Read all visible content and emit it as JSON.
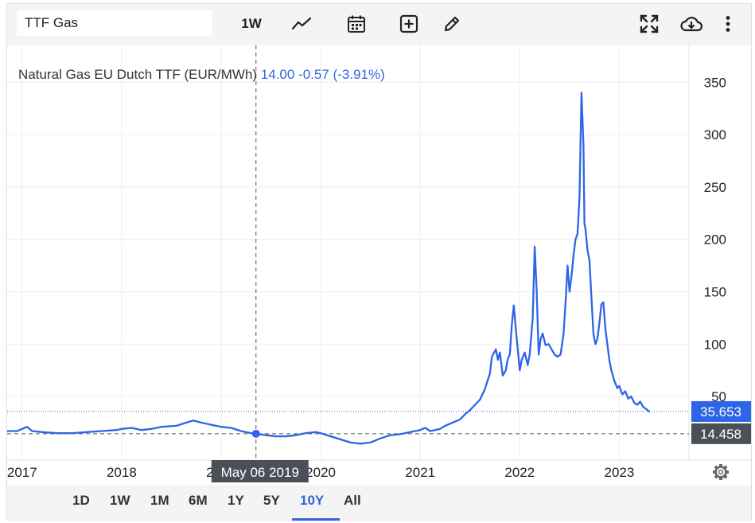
{
  "toolbar": {
    "symbol": "TTF Gas",
    "interval": "1W",
    "icons": [
      "line-chart-icon",
      "calendar-icon",
      "add-indicator-icon",
      "draw-pencil-icon",
      "fullscreen-icon",
      "cloud-download-icon",
      "more-vert-icon"
    ]
  },
  "legend": {
    "name": "Natural Gas EU Dutch TTF (EUR/MWh)",
    "price": "14.00",
    "change": "-0.57 (-3.91%)",
    "price_color": "#3366dd"
  },
  "crosshair": {
    "date_label": "May 06 2019",
    "value_label": "14.458",
    "x": 2019.35,
    "y": 14.458
  },
  "last_price_label": "35.653",
  "colors": {
    "line": "#2e64e8",
    "last_price_bg": "#2e64e8",
    "crosshair_bg": "#4a5058",
    "grid": "#ececec"
  },
  "range_buttons": [
    "1D",
    "1W",
    "1M",
    "6M",
    "1Y",
    "5Y",
    "10Y",
    "All"
  ],
  "active_range": "10Y",
  "chart_data": {
    "type": "line",
    "title": "Natural Gas EU Dutch TTF (EUR/MWh)",
    "xlabel": "",
    "ylabel": "",
    "xlim": [
      2016.85,
      2023.7
    ],
    "ylim": [
      -10,
      370
    ],
    "x_ticks": [
      2017,
      2018,
      2019,
      2020,
      2021,
      2022,
      2023
    ],
    "x_tick_labels": [
      "2017",
      "2018",
      "2019",
      "2020",
      "2021",
      "2022",
      "2023"
    ],
    "y_ticks": [
      50,
      100,
      150,
      200,
      250,
      300,
      350
    ],
    "grid": true,
    "last_value": 35.653,
    "series": [
      {
        "x": [
          2016.85,
          2016.95,
          2017.0,
          2017.05,
          2017.1,
          2017.2,
          2017.35,
          2017.5,
          2017.65,
          2017.8,
          2017.95,
          2018.0,
          2018.1,
          2018.2,
          2018.3,
          2018.4,
          2018.55,
          2018.65,
          2018.72,
          2018.8,
          2018.9,
          2019.0,
          2019.1,
          2019.2,
          2019.3,
          2019.35,
          2019.45,
          2019.55,
          2019.65,
          2019.75,
          2019.85,
          2019.95,
          2020.0,
          2020.1,
          2020.2,
          2020.3,
          2020.4,
          2020.5,
          2020.6,
          2020.7,
          2020.8,
          2020.9,
          2021.0,
          2021.05,
          2021.1,
          2021.15,
          2021.2,
          2021.25,
          2021.3,
          2021.35,
          2021.4,
          2021.45,
          2021.5,
          2021.55,
          2021.6,
          2021.65,
          2021.7,
          2021.72,
          2021.76,
          2021.78,
          2021.8,
          2021.83,
          2021.86,
          2021.88,
          2021.9,
          2021.92,
          2021.94,
          2021.96,
          2021.98,
          2022.0,
          2022.02,
          2022.05,
          2022.08,
          2022.1,
          2022.13,
          2022.15,
          2022.17,
          2022.19,
          2022.21,
          2022.23,
          2022.26,
          2022.29,
          2022.32,
          2022.35,
          2022.38,
          2022.41,
          2022.44,
          2022.46,
          2022.48,
          2022.5,
          2022.52,
          2022.54,
          2022.56,
          2022.58,
          2022.6,
          2022.62,
          2022.64,
          2022.65,
          2022.66,
          2022.68,
          2022.7,
          2022.72,
          2022.74,
          2022.76,
          2022.78,
          2022.8,
          2022.82,
          2022.84,
          2022.86,
          2022.88,
          2022.9,
          2022.92,
          2022.95,
          2022.98,
          2023.0,
          2023.03,
          2023.06,
          2023.09,
          2023.12,
          2023.15,
          2023.18,
          2023.21,
          2023.24,
          2023.27,
          2023.3
        ],
        "y": [
          17,
          17,
          19,
          21,
          17,
          16,
          15,
          15,
          16,
          17,
          18,
          19,
          20,
          18,
          19,
          21,
          22,
          25,
          27,
          25,
          23,
          21,
          20,
          17,
          15,
          14.5,
          13,
          12,
          12,
          13,
          15,
          16,
          15,
          12,
          9,
          6,
          5,
          6,
          10,
          13,
          14,
          16,
          18,
          20,
          17,
          18,
          19,
          22,
          24,
          26,
          28,
          33,
          37,
          42,
          47,
          57,
          72,
          88,
          95,
          85,
          92,
          70,
          75,
          86,
          90,
          118,
          137,
          115,
          95,
          75,
          85,
          92,
          80,
          90,
          125,
          193,
          150,
          90,
          105,
          110,
          99,
          100,
          95,
          90,
          88,
          90,
          110,
          140,
          175,
          150,
          165,
          185,
          200,
          205,
          240,
          340,
          290,
          215,
          210,
          190,
          180,
          145,
          110,
          100,
          105,
          120,
          138,
          140,
          115,
          100,
          85,
          75,
          65,
          58,
          60,
          52,
          55,
          48,
          50,
          44,
          42,
          45,
          40,
          38,
          35.653
        ]
      }
    ]
  }
}
